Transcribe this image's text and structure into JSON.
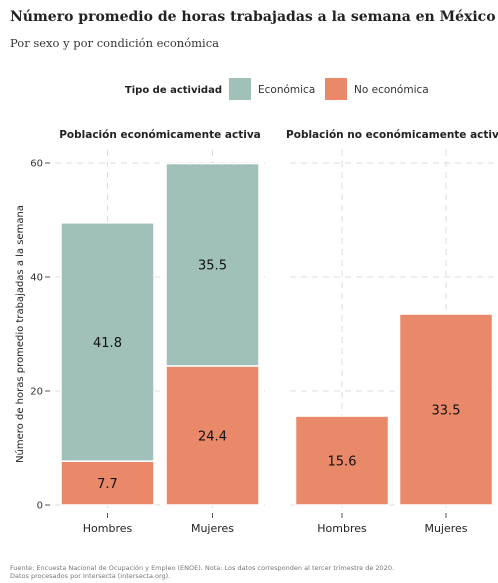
{
  "title": "Número promedio de horas trabajadas a la semana en México",
  "subtitle": "Por sexo y por condición económica",
  "legend": {
    "title": "Tipo de actividad",
    "items": [
      {
        "label": "Económica",
        "color": "#9fc1b9"
      },
      {
        "label": "No económica",
        "color": "#e9896a"
      }
    ]
  },
  "source": [
    "Fuente: Encuesta Nacional de Ocupación y Empleo (ENOE). Nota: Los datos corresponden al tercer trimestre de 2020.",
    "Datos procesados por Intersecta (intersecta.org)."
  ],
  "chart_data": {
    "type": "bar",
    "stacked": true,
    "ylabel": "Número de horas promedio trabajadas a la semana",
    "ylim": [
      0,
      60
    ],
    "yticks": [
      0,
      20,
      40,
      60
    ],
    "grid": true,
    "legend_position": "top",
    "facets": [
      {
        "title": "Población económicamente activa",
        "categories": [
          "Hombres",
          "Mujeres"
        ],
        "series": [
          {
            "name": "No económica",
            "values": [
              7.7,
              24.4
            ]
          },
          {
            "name": "Económica",
            "values": [
              41.8,
              35.5
            ]
          }
        ]
      },
      {
        "title": "Población no económicamente activa",
        "categories": [
          "Hombres",
          "Mujeres"
        ],
        "series": [
          {
            "name": "No económica",
            "values": [
              15.6,
              33.5
            ]
          },
          {
            "name": "Económica",
            "values": [
              0,
              0
            ]
          }
        ]
      }
    ]
  }
}
